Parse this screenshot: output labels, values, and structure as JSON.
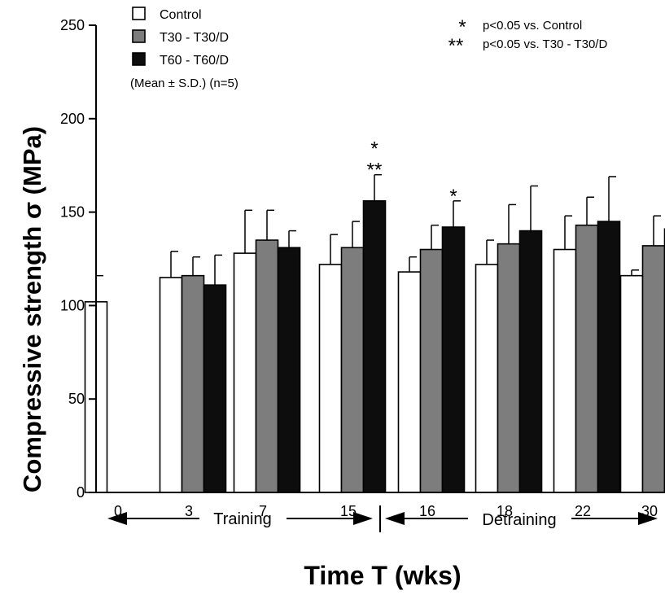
{
  "chart_data": {
    "type": "bar",
    "xlabel": "Time T (wks)",
    "ylabel": "Compressive strength σ (MPa)",
    "ylim": [
      0,
      250
    ],
    "yticks": [
      0,
      50,
      100,
      150,
      200,
      250
    ],
    "categories": [
      "0",
      "3",
      "7",
      "15",
      "16",
      "18",
      "22",
      "30"
    ],
    "series": [
      {
        "name": "Control",
        "color": "#ffffff",
        "values": [
          102,
          115,
          128,
          122,
          118,
          122,
          130,
          116
        ],
        "errors": [
          14,
          14,
          23,
          16,
          8,
          13,
          18,
          3
        ]
      },
      {
        "name": "T30 - T30/D",
        "color": "#7d7d7d",
        "values": [
          null,
          116,
          135,
          131,
          130,
          133,
          143,
          132
        ],
        "errors": [
          null,
          10,
          16,
          14,
          13,
          21,
          15,
          16
        ]
      },
      {
        "name": "T60 - T60/D",
        "color": "#0d0d0d",
        "values": [
          null,
          111,
          131,
          156,
          142,
          140,
          145,
          141
        ],
        "errors": [
          null,
          16,
          9,
          14,
          14,
          24,
          24,
          18
        ]
      }
    ],
    "significance": [
      {
        "category": "15",
        "series": "T60 - T60/D",
        "marks": [
          "*",
          "**"
        ]
      },
      {
        "category": "16",
        "series": "T60 - T60/D",
        "marks": [
          "*"
        ]
      },
      {
        "category": "30",
        "series": "T60 - T60/D",
        "marks": [
          "*"
        ]
      }
    ],
    "legend": {
      "placement": "top-left",
      "entries": [
        "Control",
        "T30 - T30/D",
        "T60 - T60/D"
      ],
      "note": "(Mean ± S.D.) (n=5)"
    },
    "significance_legend": [
      {
        "symbol": "*",
        "text": "p<0.05 vs. Control"
      },
      {
        "symbol": "**",
        "text": "p<0.05 vs. T30 - T30/D"
      }
    ],
    "phases": [
      {
        "label": "Training",
        "categories": [
          "0",
          "3",
          "7",
          "15"
        ]
      },
      {
        "label": "Detraining",
        "categories": [
          "16",
          "18",
          "22",
          "30"
        ]
      }
    ]
  }
}
